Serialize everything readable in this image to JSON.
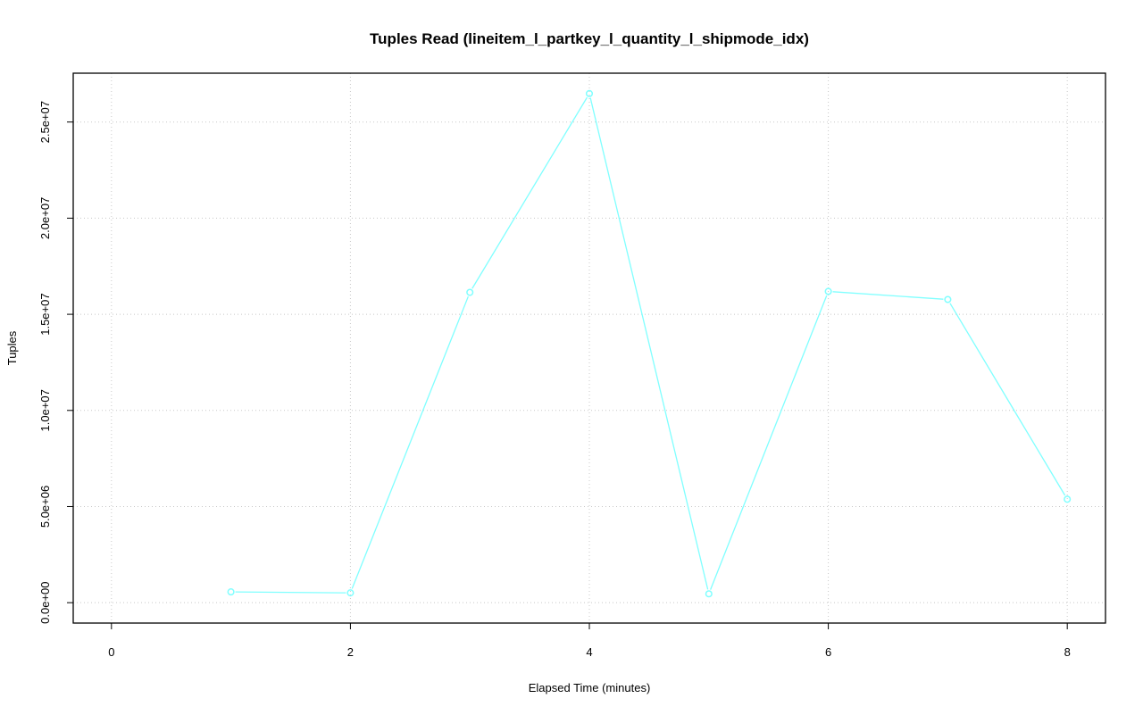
{
  "chart_data": {
    "type": "line",
    "title": "Tuples Read (lineitem_l_partkey_l_quantity_l_shipmode_idx)",
    "xlabel": "Elapsed Time (minutes)",
    "ylabel": "Tuples",
    "x": [
      1,
      2,
      3,
      4,
      5,
      6,
      7,
      8
    ],
    "series": [
      {
        "values": [
          560000,
          510000,
          16140000,
          26480000,
          460000,
          16190000,
          15770000,
          5380000
        ],
        "color": "#80ffff"
      }
    ],
    "xlim": [
      -0.32,
      8.32
    ],
    "ylim": [
      -1060000,
      27540000
    ],
    "xticks": [
      0,
      2,
      4,
      6,
      8
    ],
    "xtick_labels": [
      "0",
      "2",
      "4",
      "6",
      "8"
    ],
    "yticks": [
      0,
      5000000,
      10000000,
      15000000,
      20000000,
      25000000
    ],
    "ytick_labels": [
      "0.0e+00",
      "5.0e+06",
      "1.0e+07",
      "1.5e+07",
      "2.0e+07",
      "2.5e+07"
    ],
    "grid": true,
    "marker": "open-circle"
  }
}
